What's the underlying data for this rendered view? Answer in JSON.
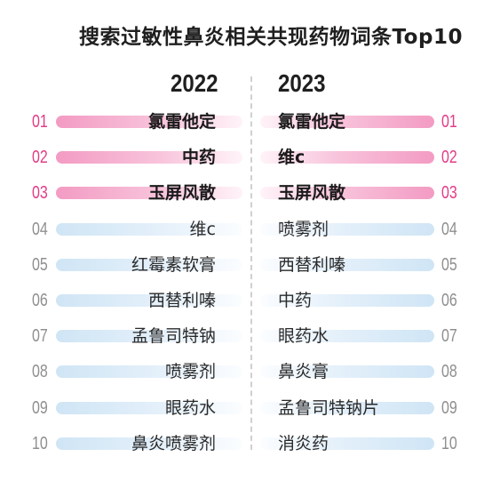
{
  "title": "搜索过敏性鼻炎相关共现药物词条Top10",
  "chart_data": {
    "type": "table",
    "columns": [
      {
        "year": "2022",
        "ranks": [
          "01",
          "02",
          "03",
          "04",
          "05",
          "06",
          "07",
          "08",
          "09",
          "10"
        ],
        "items": [
          "氯雷他定",
          "中药",
          "玉屏风散",
          "维c",
          "红霉素软膏",
          "西替利嗪",
          "孟鲁司特钠",
          "喷雾剂",
          "眼药水",
          "鼻炎喷雾剂"
        ]
      },
      {
        "year": "2023",
        "ranks": [
          "01",
          "02",
          "03",
          "04",
          "05",
          "06",
          "07",
          "08",
          "09",
          "10"
        ],
        "items": [
          "氯雷他定",
          "维c",
          "玉屏风散",
          "喷雾剂",
          "西替利嗪",
          "中药",
          "眼药水",
          "鼻炎膏",
          "孟鲁司特钠片",
          "消炎药"
        ]
      }
    ],
    "highlight_top_n": 3,
    "colors": {
      "top_rank": "#e23c86",
      "top_bar": "#f39bc3",
      "rest_rank": "#8f8f8f",
      "rest_bar": "#cfe5f5"
    }
  }
}
